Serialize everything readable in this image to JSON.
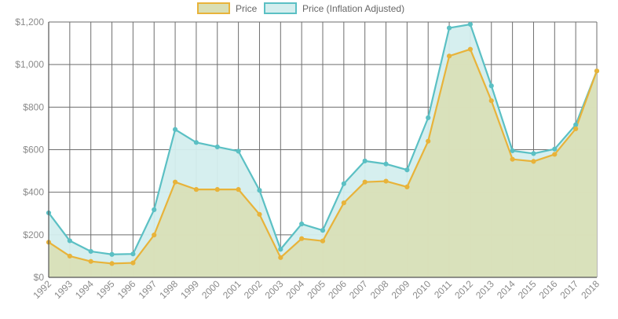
{
  "chart_data": {
    "type": "area",
    "title": "",
    "xlabel": "",
    "ylabel": "",
    "categories": [
      "1992",
      "1993",
      "1994",
      "1995",
      "1996",
      "1997",
      "1998",
      "1999",
      "2000",
      "2001",
      "2002",
      "2003",
      "2004",
      "2005",
      "2006",
      "2007",
      "2008",
      "2009",
      "2010",
      "2011",
      "2012",
      "2013",
      "2014",
      "2015",
      "2016",
      "2017",
      "2018"
    ],
    "series": [
      {
        "name": "Price (Inflation Adjusted)",
        "values": [
          303,
          172,
          122,
          108,
          110,
          318,
          695,
          634,
          613,
          593,
          409,
          132,
          251,
          221,
          440,
          547,
          533,
          505,
          750,
          1172,
          1189,
          900,
          595,
          582,
          603,
          717,
          970
        ],
        "line_color": "#5bc0c4",
        "fill_color": "#d4eeee"
      },
      {
        "name": "Price",
        "values": [
          165,
          100,
          75,
          65,
          68,
          199,
          448,
          413,
          413,
          413,
          296,
          93,
          182,
          171,
          350,
          448,
          452,
          425,
          640,
          1040,
          1072,
          830,
          555,
          545,
          578,
          698,
          970
        ],
        "line_color": "#e8b33a",
        "fill_color": "#d9dfb5"
      }
    ],
    "ylim": [
      0,
      1200
    ],
    "yticks": [
      0,
      200,
      400,
      600,
      800,
      1000,
      1200
    ],
    "ytick_labels": [
      "$0",
      "$200",
      "$400",
      "$600",
      "$800",
      "$1,000",
      "$1,200"
    ],
    "grid": true,
    "legend_position": "top-center"
  }
}
